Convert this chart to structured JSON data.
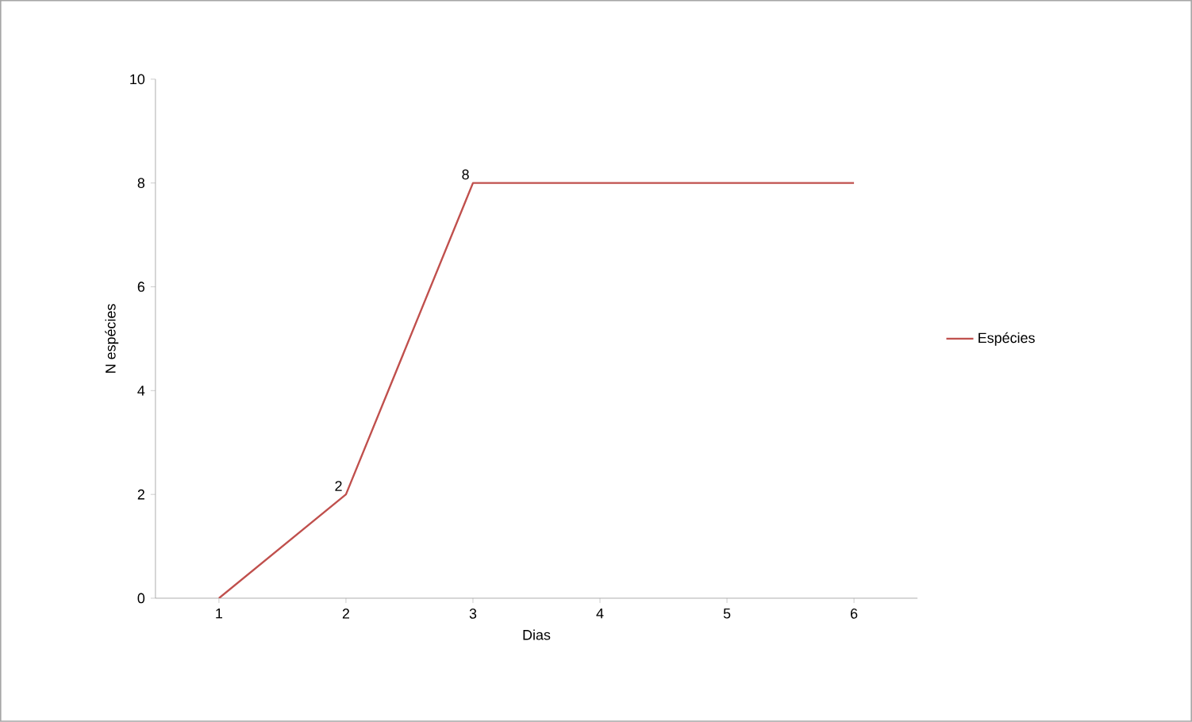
{
  "chart_data": {
    "type": "line",
    "xlabel": "Dias",
    "ylabel": "N espécies",
    "categories": [
      "1",
      "2",
      "3",
      "4",
      "5",
      "6"
    ],
    "series": [
      {
        "name": "Espécies",
        "color": "#c0504d",
        "values": [
          0,
          2,
          8,
          8,
          8,
          8
        ],
        "value_labels": [
          null,
          "2",
          "8",
          null,
          null,
          null
        ]
      }
    ],
    "ylim": [
      0,
      10
    ],
    "yticks": [
      0,
      2,
      4,
      6,
      8,
      10
    ],
    "legend": "right"
  }
}
